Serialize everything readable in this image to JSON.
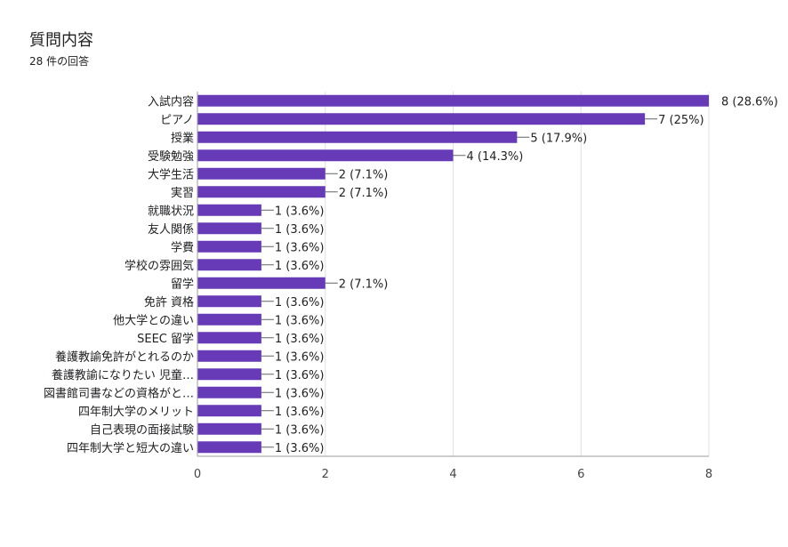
{
  "header": {
    "title": "質問内容",
    "response_count": "28 件の回答"
  },
  "colors": {
    "bar": "#673ab7",
    "grid": "#e0e0e0",
    "axis": "#9e9e9e",
    "text": "#202124"
  },
  "chart_data": {
    "type": "bar",
    "orientation": "horizontal",
    "xlim": [
      0,
      8
    ],
    "xticks": [
      0,
      2,
      4,
      6,
      8
    ],
    "grid": true,
    "categories": [
      "入試内容",
      "ピアノ",
      "授業",
      "受験勉強",
      "大学生活",
      "実習",
      "就職状況",
      "友人関係",
      "学費",
      "学校の雰囲気",
      "留学",
      "免許 資格",
      "他大学との違い",
      "SEEC 留学",
      "養護教諭免許がとれるのか",
      "養護教諭になりたい 児童…",
      "図書館司書などの資格がと…",
      "四年制大学のメリット",
      "自己表現の面接試験",
      "四年制大学と短大の違い"
    ],
    "values": [
      8,
      7,
      5,
      4,
      2,
      2,
      1,
      1,
      1,
      1,
      2,
      1,
      1,
      1,
      1,
      1,
      1,
      1,
      1,
      1
    ],
    "data_labels": [
      "8 (28.6%)",
      "7 (25%)",
      "5 (17.9%)",
      "4 (14.3%)",
      "2 (7.1%)",
      "2 (7.1%)",
      "1 (3.6%)",
      "1 (3.6%)",
      "1 (3.6%)",
      "1 (3.6%)",
      "2 (7.1%)",
      "1 (3.6%)",
      "1 (3.6%)",
      "1 (3.6%)",
      "1 (3.6%)",
      "1 (3.6%)",
      "1 (3.6%)",
      "1 (3.6%)",
      "1 (3.6%)",
      "1 (3.6%)"
    ]
  }
}
